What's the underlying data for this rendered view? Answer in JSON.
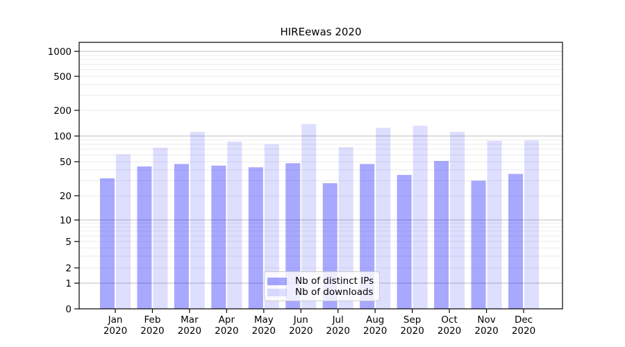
{
  "chart_data": {
    "type": "bar",
    "title": "HIREewas 2020",
    "categories": [
      "Jan 2020",
      "Feb 2020",
      "Mar 2020",
      "Apr 2020",
      "May 2020",
      "Jun 2020",
      "Jul 2020",
      "Aug 2020",
      "Sep 2020",
      "Oct 2020",
      "Nov 2020",
      "Dec 2020"
    ],
    "series": [
      {
        "name": "Nb of distinct IPs",
        "color": "#0000ff",
        "fill_opacity": 0.34,
        "values": [
          32,
          44,
          47,
          45,
          43,
          48,
          28,
          47,
          35,
          51,
          30,
          36
        ]
      },
      {
        "name": "Nb of downloads",
        "color": "#0000ff",
        "fill_opacity": 0.13,
        "values": [
          61,
          73,
          112,
          86,
          80,
          138,
          74,
          125,
          132,
          112,
          88,
          89
        ]
      }
    ],
    "xlabel": "",
    "ylabel": "",
    "yscale": "symlog",
    "yticks": [
      0,
      1,
      2,
      5,
      10,
      20,
      50,
      100,
      200,
      500,
      1000
    ],
    "ylim": [
      0,
      1300
    ],
    "grid": true,
    "legend_position": "lower-center"
  }
}
